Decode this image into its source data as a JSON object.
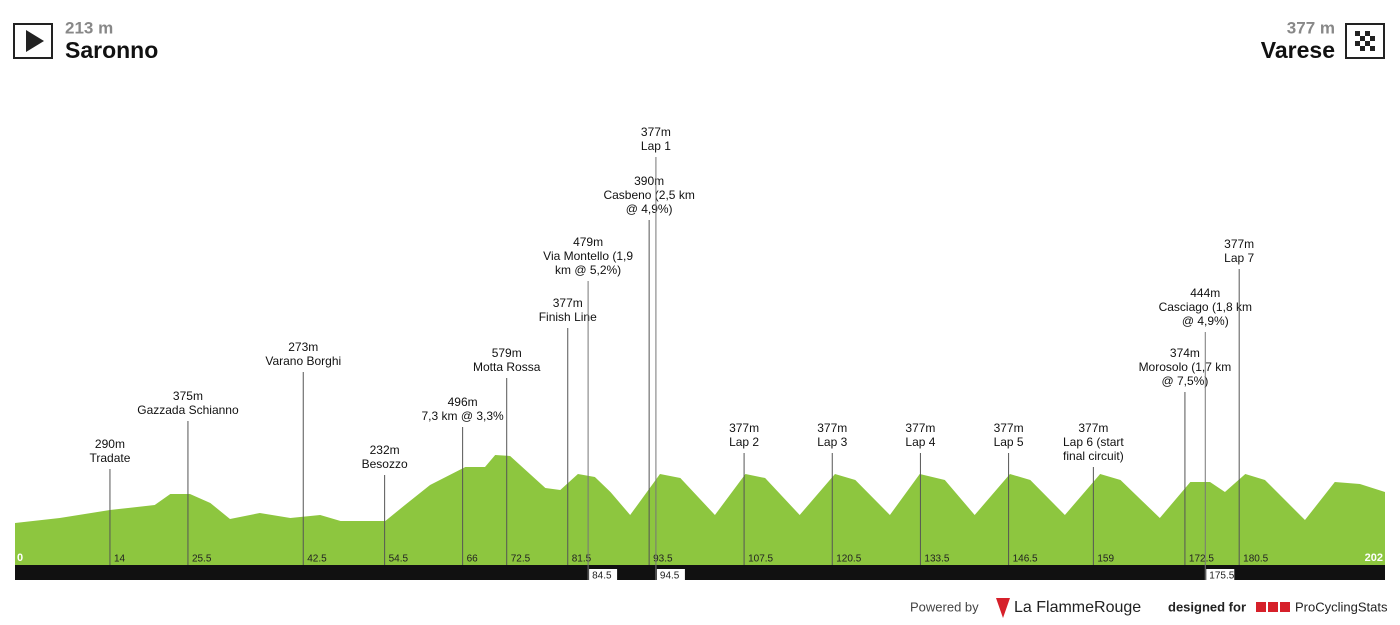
{
  "chart_data": {
    "type": "profile",
    "start": {
      "elevation": "213 m",
      "name": "Saronno"
    },
    "finish": {
      "elevation": "377 m",
      "name": "Varese"
    },
    "xlim": [
      0,
      202
    ],
    "ylim": [
      0,
      1000
    ],
    "color": "#8dc63f",
    "x": [
      0,
      6.6,
      14,
      20.6,
      22.9,
      25.8,
      28.8,
      31.7,
      36.1,
      40.6,
      45,
      48,
      54.6,
      57.5,
      61.2,
      66.4,
      69.3,
      70.8,
      73,
      78.2,
      80.4,
      83,
      85.5,
      87.8,
      90.7,
      95.1,
      98.1,
      103.2,
      107.7,
      110.6,
      115.7,
      120.9,
      123.9,
      129,
      133.4,
      137.1,
      141.5,
      146.7,
      149.7,
      154.8,
      160,
      163,
      168.8,
      173.3,
      176.2,
      178.4,
      181.4,
      184.3,
      190.2,
      194.6,
      198.3,
      202
    ],
    "values": [
      210,
      235,
      275,
      300,
      355,
      355,
      310,
      230,
      260,
      235,
      250,
      220,
      220,
      300,
      400,
      490,
      490,
      550,
      545,
      385,
      375,
      455,
      440,
      365,
      250,
      455,
      435,
      250,
      455,
      435,
      250,
      455,
      425,
      250,
      455,
      425,
      250,
      455,
      425,
      250,
      455,
      425,
      235,
      415,
      415,
      365,
      455,
      425,
      225,
      415,
      405,
      365
    ],
    "markers": [
      {
        "km": 14,
        "elevation": "290m",
        "name": [
          "Tradate"
        ]
      },
      {
        "km": 25.5,
        "elevation": "375m",
        "name": [
          "Gazzada Schianno"
        ]
      },
      {
        "km": 42.5,
        "elevation": "273m",
        "name": [
          "Varano Borghi"
        ]
      },
      {
        "km": 54.5,
        "elevation": "232m",
        "name": [
          "Besozzo"
        ]
      },
      {
        "km": 66,
        "elevation": "496m",
        "name": [
          "7,3 km @ 3,3%"
        ]
      },
      {
        "km": 72.5,
        "elevation": "579m",
        "name": [
          "Motta Rossa"
        ]
      },
      {
        "km": 81.5,
        "elevation": "377m",
        "name": [
          "Finish Line"
        ]
      },
      {
        "km": 84.5,
        "elevation": "479m",
        "name": [
          "Via Montello (1,9",
          "km @ 5,2%)"
        ]
      },
      {
        "km": 93.5,
        "elevation": "390m",
        "name": [
          "Casbeno (2,5 km",
          "@ 4,9%)"
        ]
      },
      {
        "km": 94.5,
        "elevation": "377m",
        "name": [
          "Lap 1"
        ]
      },
      {
        "km": 107.5,
        "elevation": "377m",
        "name": [
          "Lap 2"
        ]
      },
      {
        "km": 120.5,
        "elevation": "377m",
        "name": [
          "Lap 3"
        ]
      },
      {
        "km": 133.5,
        "elevation": "377m",
        "name": [
          "Lap 4"
        ]
      },
      {
        "km": 146.5,
        "elevation": "377m",
        "name": [
          "Lap 5"
        ]
      },
      {
        "km": 159,
        "elevation": "377m",
        "name": [
          "Lap 6 (start",
          "final circuit)"
        ]
      },
      {
        "km": 172.5,
        "elevation": "374m",
        "name": [
          "Morosolo (1,7 km",
          "@ 7,5%)"
        ]
      },
      {
        "km": 175.5,
        "elevation": "444m",
        "name": [
          "Casciago (1,8 km",
          "@ 4,9%)"
        ]
      },
      {
        "km": 180.5,
        "elevation": "377m",
        "name": [
          "Lap 7"
        ]
      }
    ],
    "footer": {
      "powered_by": "Powered by",
      "brand": "La FlammeRouge",
      "designed_for": "designed for",
      "site": "ProCyclingStats"
    }
  }
}
